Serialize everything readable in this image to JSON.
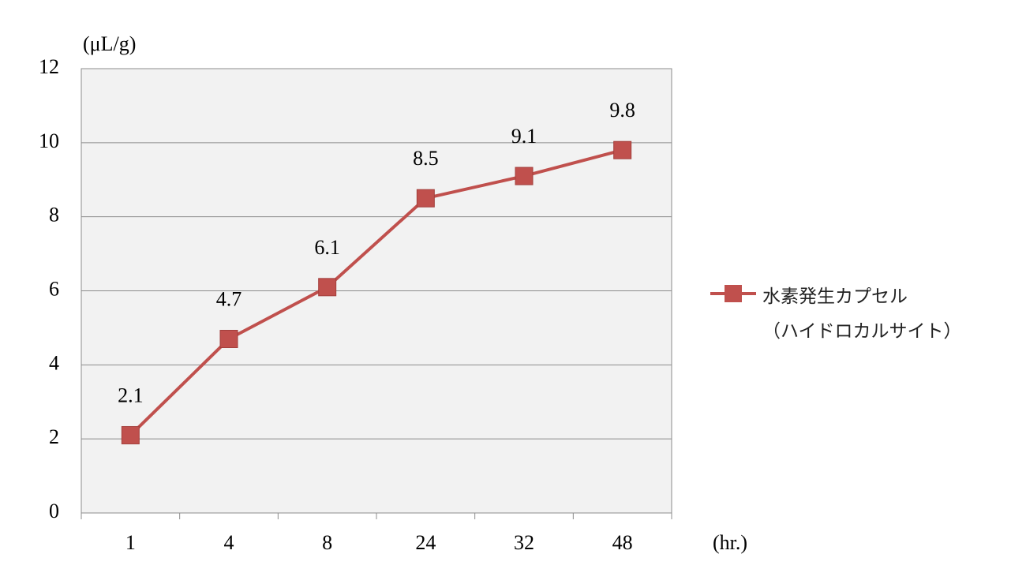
{
  "chart_data": {
    "type": "line",
    "y_label": "(μL/g)",
    "x_label": "(hr.)",
    "categories": [
      "1",
      "4",
      "8",
      "24",
      "32",
      "48"
    ],
    "series": [
      {
        "name": "水素発生カプセル\n（ハイドロカルサイト）",
        "color": "#c0504d",
        "values": [
          2.1,
          4.7,
          6.1,
          8.5,
          9.1,
          9.8
        ]
      }
    ],
    "ylim": [
      0,
      12
    ],
    "yticks": [
      0,
      2,
      4,
      6,
      8,
      10,
      12
    ],
    "grid": true,
    "legend": "right"
  }
}
